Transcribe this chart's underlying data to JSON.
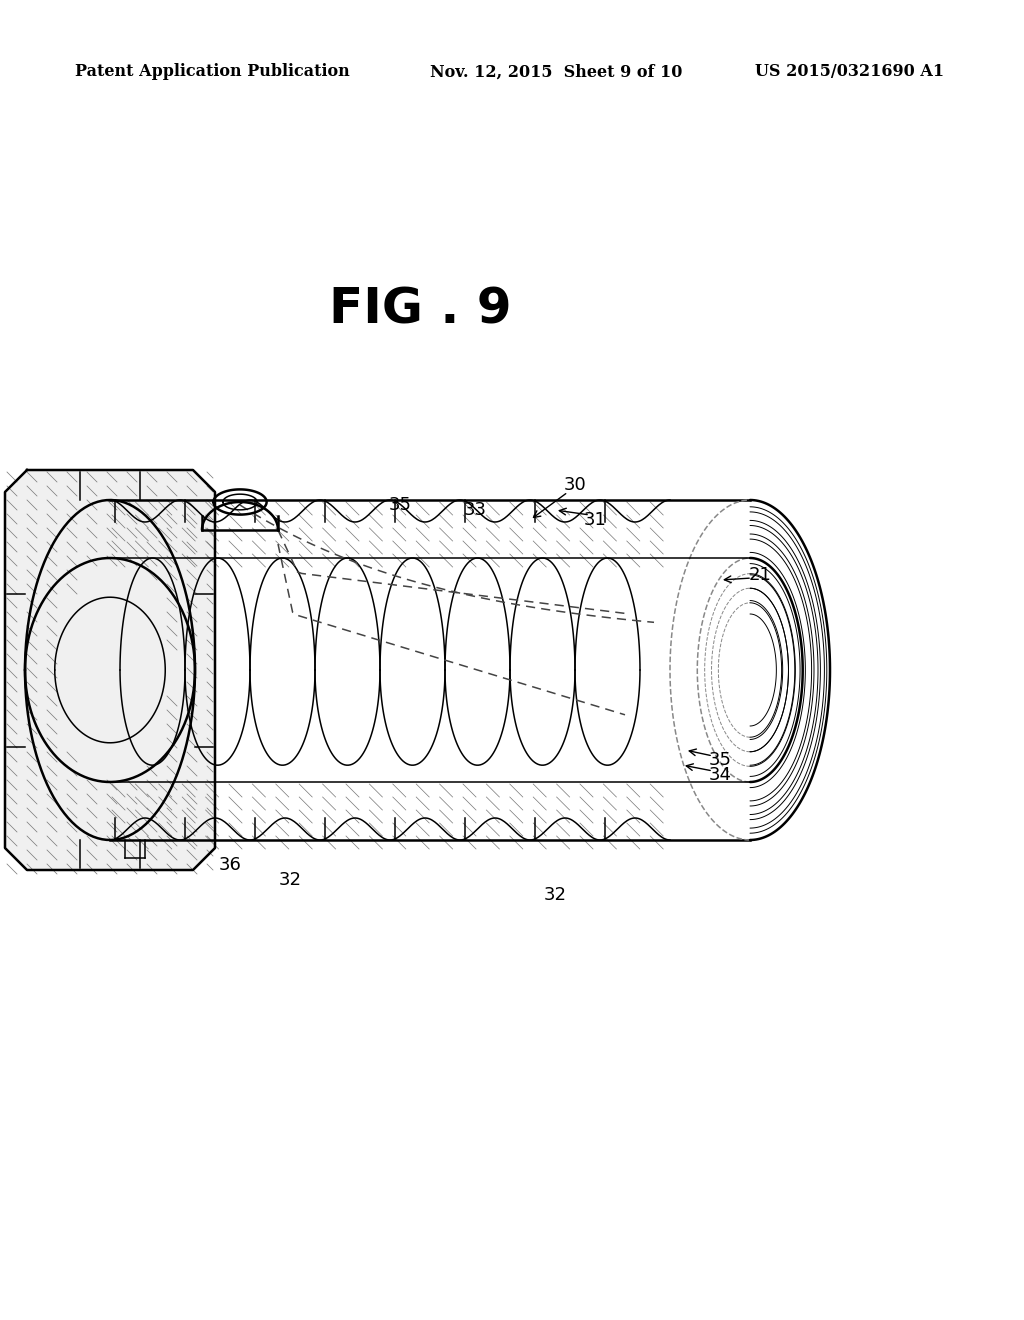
{
  "background_color": "#ffffff",
  "header_left": "Patent Application Publication",
  "header_mid": "Nov. 12, 2015  Sheet 9 of 10",
  "header_right": "US 2015/0321690 A1",
  "fig_label": "FIG . 9",
  "header_fontsize": 11.5,
  "ref_fontsize": 13,
  "line_color": "#000000",
  "page_width": 10.24,
  "page_height": 13.2,
  "dpi": 100
}
